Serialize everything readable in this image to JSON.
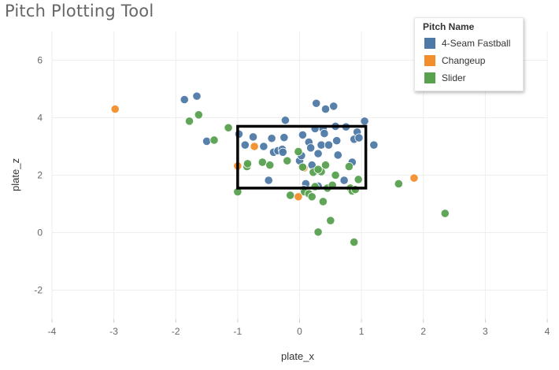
{
  "page": {
    "title": "Pitch Plotting Tool"
  },
  "legend": {
    "title": "Pitch Name",
    "items": [
      {
        "label": "4-Seam Fastball",
        "color": "#4e79a7"
      },
      {
        "label": "Changeup",
        "color": "#f28e2b"
      },
      {
        "label": "Slider",
        "color": "#59a14f"
      }
    ]
  },
  "chart_data": {
    "type": "scatter",
    "title": "Pitch Plotting Tool",
    "xlabel": "plate_x",
    "ylabel": "plate_z",
    "xlim": [
      -4,
      4
    ],
    "ylim": [
      -3,
      7
    ],
    "xticks": [
      "-4",
      "-3",
      "-2",
      "-1",
      "0",
      "1",
      "2",
      "3",
      "4"
    ],
    "yticks": [
      "-2",
      "0",
      "2",
      "4",
      "6"
    ],
    "grid": true,
    "strike_zone": {
      "x": [
        -1.0,
        1.07
      ],
      "z": [
        1.55,
        3.7
      ]
    },
    "series": [
      {
        "name": "4-Seam Fastball",
        "color": "#4e79a7",
        "points": [
          [
            -1.86,
            4.63
          ],
          [
            -1.66,
            4.75
          ],
          [
            -1.5,
            3.18
          ],
          [
            -0.98,
            3.43
          ],
          [
            -0.88,
            3.05
          ],
          [
            -0.75,
            3.33
          ],
          [
            -0.58,
            3.0
          ],
          [
            -0.5,
            1.82
          ],
          [
            -0.45,
            3.28
          ],
          [
            -0.42,
            2.8
          ],
          [
            -0.35,
            2.85
          ],
          [
            -0.28,
            2.9
          ],
          [
            -0.27,
            2.8
          ],
          [
            -0.25,
            3.31
          ],
          [
            -0.23,
            3.91
          ],
          [
            0.0,
            2.5
          ],
          [
            0.03,
            2.68
          ],
          [
            0.05,
            3.4
          ],
          [
            0.1,
            1.7
          ],
          [
            0.15,
            3.15
          ],
          [
            0.18,
            2.95
          ],
          [
            0.2,
            2.35
          ],
          [
            0.25,
            3.62
          ],
          [
            0.27,
            4.5
          ],
          [
            0.3,
            2.75
          ],
          [
            0.35,
            3.05
          ],
          [
            0.38,
            3.61
          ],
          [
            0.4,
            3.45
          ],
          [
            0.42,
            4.3
          ],
          [
            0.47,
            3.05
          ],
          [
            0.55,
            4.4
          ],
          [
            0.58,
            3.7
          ],
          [
            0.6,
            3.2
          ],
          [
            0.62,
            2.7
          ],
          [
            0.72,
            1.82
          ],
          [
            0.85,
            2.45
          ],
          [
            0.88,
            3.25
          ],
          [
            0.93,
            3.5
          ],
          [
            0.96,
            3.3
          ],
          [
            1.05,
            3.88
          ],
          [
            1.2,
            3.05
          ],
          [
            0.07,
            1.5
          ],
          [
            0.3,
            1.62
          ],
          [
            0.75,
            3.68
          ]
        ]
      },
      {
        "name": "Changeup",
        "color": "#f28e2b",
        "points": [
          [
            -2.98,
            4.3
          ],
          [
            -1.0,
            2.32
          ],
          [
            -0.73,
            3.0
          ],
          [
            -0.02,
            1.25
          ],
          [
            0.07,
            2.25
          ],
          [
            0.85,
            1.5
          ],
          [
            1.85,
            1.9
          ]
        ]
      },
      {
        "name": "Slider",
        "color": "#59a14f",
        "points": [
          [
            -1.78,
            3.88
          ],
          [
            -1.63,
            4.1
          ],
          [
            -1.38,
            3.22
          ],
          [
            -1.15,
            3.65
          ],
          [
            -1.0,
            1.42
          ],
          [
            -0.85,
            2.3
          ],
          [
            -0.84,
            2.4
          ],
          [
            -0.6,
            2.45
          ],
          [
            -0.48,
            2.35
          ],
          [
            -0.2,
            2.5
          ],
          [
            -0.15,
            1.3
          ],
          [
            -0.02,
            2.82
          ],
          [
            0.05,
            2.28
          ],
          [
            0.08,
            1.42
          ],
          [
            0.15,
            1.35
          ],
          [
            0.2,
            1.25
          ],
          [
            0.22,
            2.1
          ],
          [
            0.25,
            1.6
          ],
          [
            0.3,
            0.02
          ],
          [
            0.35,
            2.12
          ],
          [
            0.38,
            1.08
          ],
          [
            0.42,
            2.35
          ],
          [
            0.45,
            1.55
          ],
          [
            0.5,
            0.42
          ],
          [
            0.53,
            1.65
          ],
          [
            0.58,
            2.0
          ],
          [
            0.8,
            2.3
          ],
          [
            0.82,
            1.55
          ],
          [
            0.85,
            1.45
          ],
          [
            0.88,
            -0.33
          ],
          [
            0.9,
            1.5
          ],
          [
            0.95,
            1.85
          ],
          [
            1.6,
            1.7
          ],
          [
            2.35,
            0.67
          ],
          [
            0.3,
            2.2
          ]
        ]
      }
    ]
  }
}
